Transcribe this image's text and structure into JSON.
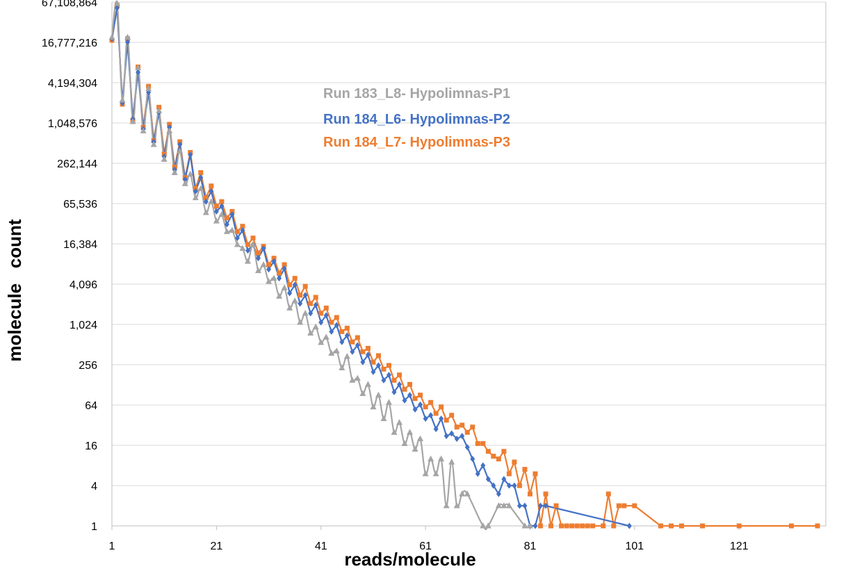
{
  "chart_data": {
    "type": "line",
    "title": "",
    "xlabel": "reads/molecule",
    "ylabel": "molecule   count",
    "x_scale": "linear",
    "y_scale": "log2",
    "xlim": [
      1,
      136
    ],
    "ylim": [
      1,
      67108864
    ],
    "x_ticks": [
      1,
      21,
      41,
      61,
      81,
      101,
      121
    ],
    "x_tick_labels": [
      "1",
      "21",
      "41",
      "61",
      "81",
      "101",
      "121"
    ],
    "y_ticks": [
      1,
      4,
      16,
      64,
      256,
      1024,
      4096,
      16384,
      65536,
      262144,
      1048576,
      4194304,
      16777216,
      67108864
    ],
    "y_tick_labels": [
      "1",
      "4",
      "16",
      "64",
      "256",
      "1,024",
      "4,096",
      "16,384",
      "65,536",
      "262,144",
      "1,048,576",
      "4,194,304",
      "16,777,216",
      "67,108,864"
    ],
    "grid": "horizontal",
    "legend_position": "center-top",
    "series": [
      {
        "name": "Run 183_L8- Hypolimnas-P1",
        "color": "#a5a5a5",
        "marker": "triangle",
        "smooth": true,
        "points": [
          [
            1,
            20000000
          ],
          [
            2,
            64000000
          ],
          [
            3,
            2300000
          ],
          [
            4,
            20000000
          ],
          [
            5,
            1100000
          ],
          [
            6,
            7000000
          ],
          [
            7,
            800000
          ],
          [
            8,
            3400000
          ],
          [
            9,
            500000
          ],
          [
            10,
            1600000
          ],
          [
            11,
            300000
          ],
          [
            12,
            800000
          ],
          [
            13,
            190000
          ],
          [
            14,
            400000
          ],
          [
            15,
            130000
          ],
          [
            16,
            180000
          ],
          [
            17,
            80000
          ],
          [
            18,
            110000
          ],
          [
            19,
            48000
          ],
          [
            20,
            70000
          ],
          [
            21,
            36000
          ],
          [
            22,
            45000
          ],
          [
            23,
            25000
          ],
          [
            24,
            26000
          ],
          [
            25,
            16000
          ],
          [
            26,
            14000
          ],
          [
            27,
            9000
          ],
          [
            28,
            16000
          ],
          [
            29,
            6500
          ],
          [
            30,
            8000
          ],
          [
            31,
            4500
          ],
          [
            32,
            5000
          ],
          [
            33,
            2700
          ],
          [
            34,
            3600
          ],
          [
            35,
            1800
          ],
          [
            36,
            2300
          ],
          [
            37,
            1100
          ],
          [
            38,
            1500
          ],
          [
            39,
            760
          ],
          [
            40,
            940
          ],
          [
            41,
            550
          ],
          [
            42,
            660
          ],
          [
            43,
            380
          ],
          [
            44,
            410
          ],
          [
            45,
            230
          ],
          [
            46,
            340
          ],
          [
            47,
            150
          ],
          [
            48,
            160
          ],
          [
            49,
            95
          ],
          [
            50,
            130
          ],
          [
            51,
            60
          ],
          [
            52,
            90
          ],
          [
            53,
            40
          ],
          [
            54,
            70
          ],
          [
            55,
            25
          ],
          [
            56,
            35
          ],
          [
            57,
            17
          ],
          [
            58,
            25
          ],
          [
            59,
            14
          ],
          [
            60,
            20
          ],
          [
            61,
            6
          ],
          [
            62,
            10
          ],
          [
            63,
            6
          ],
          [
            64,
            10
          ],
          [
            65,
            2
          ],
          [
            66,
            9
          ],
          [
            67,
            2
          ],
          [
            68,
            3
          ],
          [
            69,
            3
          ],
          [
            72,
            1
          ],
          [
            73,
            1
          ],
          [
            75,
            2
          ],
          [
            76,
            2
          ],
          [
            77,
            2
          ],
          [
            80,
            1
          ],
          [
            81,
            1
          ]
        ]
      },
      {
        "name": "Run 184_L6- Hypolimnas-P2",
        "color": "#4472c4",
        "marker": "diamond",
        "smooth": false,
        "points": [
          [
            1,
            19000000
          ],
          [
            2,
            55000000
          ],
          [
            3,
            2100000
          ],
          [
            4,
            17000000
          ],
          [
            5,
            1200000
          ],
          [
            6,
            6000000
          ],
          [
            7,
            850000
          ],
          [
            8,
            3000000
          ],
          [
            9,
            550000
          ],
          [
            10,
            1500000
          ],
          [
            11,
            330000
          ],
          [
            12,
            900000
          ],
          [
            13,
            210000
          ],
          [
            14,
            500000
          ],
          [
            15,
            150000
          ],
          [
            16,
            350000
          ],
          [
            17,
            100000
          ],
          [
            18,
            160000
          ],
          [
            19,
            70000
          ],
          [
            20,
            100000
          ],
          [
            21,
            50000
          ],
          [
            22,
            60000
          ],
          [
            23,
            32000
          ],
          [
            24,
            45000
          ],
          [
            25,
            20000
          ],
          [
            26,
            26000
          ],
          [
            27,
            13000
          ],
          [
            28,
            16000
          ],
          [
            29,
            10000
          ],
          [
            30,
            14000
          ],
          [
            31,
            6800
          ],
          [
            32,
            9000
          ],
          [
            33,
            5000
          ],
          [
            34,
            7000
          ],
          [
            35,
            3000
          ],
          [
            36,
            4000
          ],
          [
            37,
            2100
          ],
          [
            38,
            2800
          ],
          [
            39,
            1500
          ],
          [
            40,
            2000
          ],
          [
            41,
            1100
          ],
          [
            42,
            1400
          ],
          [
            43,
            800
          ],
          [
            44,
            1000
          ],
          [
            45,
            560
          ],
          [
            46,
            700
          ],
          [
            47,
            400
          ],
          [
            48,
            500
          ],
          [
            49,
            280
          ],
          [
            50,
            360
          ],
          [
            51,
            200
          ],
          [
            52,
            250
          ],
          [
            53,
            150
          ],
          [
            54,
            180
          ],
          [
            55,
            100
          ],
          [
            56,
            130
          ],
          [
            57,
            75
          ],
          [
            58,
            90
          ],
          [
            59,
            55
          ],
          [
            60,
            65
          ],
          [
            61,
            40
          ],
          [
            62,
            45
          ],
          [
            63,
            28
          ],
          [
            64,
            40
          ],
          [
            65,
            22
          ],
          [
            66,
            24
          ],
          [
            67,
            20
          ],
          [
            68,
            22
          ],
          [
            69,
            15
          ],
          [
            70,
            10
          ],
          [
            71,
            6
          ],
          [
            72,
            8
          ],
          [
            73,
            5
          ],
          [
            74,
            4
          ],
          [
            75,
            3
          ],
          [
            76,
            5
          ],
          [
            77,
            4
          ],
          [
            78,
            4
          ],
          [
            79,
            2
          ],
          [
            80,
            2
          ],
          [
            81,
            1
          ],
          [
            82,
            1
          ],
          [
            83,
            2
          ],
          [
            84,
            2
          ],
          [
            100,
            1
          ]
        ]
      },
      {
        "name": "Run 184_L7- Hypolimnas-P3",
        "color": "#ed7d31",
        "marker": "square",
        "smooth": false,
        "points": [
          [
            1,
            18000000
          ],
          [
            2,
            60000000
          ],
          [
            3,
            2000000
          ],
          [
            4,
            19000000
          ],
          [
            5,
            1150000
          ],
          [
            6,
            7200000
          ],
          [
            7,
            900000
          ],
          [
            8,
            3700000
          ],
          [
            9,
            570000
          ],
          [
            10,
            1800000
          ],
          [
            11,
            360000
          ],
          [
            12,
            1000000
          ],
          [
            13,
            230000
          ],
          [
            14,
            550000
          ],
          [
            15,
            160000
          ],
          [
            16,
            380000
          ],
          [
            17,
            110000
          ],
          [
            18,
            190000
          ],
          [
            19,
            80000
          ],
          [
            20,
            120000
          ],
          [
            21,
            60000
          ],
          [
            22,
            70000
          ],
          [
            23,
            40000
          ],
          [
            24,
            50000
          ],
          [
            25,
            25000
          ],
          [
            26,
            30000
          ],
          [
            27,
            16000
          ],
          [
            28,
            20000
          ],
          [
            29,
            12000
          ],
          [
            30,
            15000
          ],
          [
            31,
            8000
          ],
          [
            32,
            10000
          ],
          [
            33,
            6000
          ],
          [
            34,
            8000
          ],
          [
            35,
            4000
          ],
          [
            36,
            5000
          ],
          [
            37,
            2800
          ],
          [
            38,
            3800
          ],
          [
            39,
            2100
          ],
          [
            40,
            2600
          ],
          [
            41,
            1500
          ],
          [
            42,
            1800
          ],
          [
            43,
            1100
          ],
          [
            44,
            1300
          ],
          [
            45,
            800
          ],
          [
            46,
            900
          ],
          [
            47,
            560
          ],
          [
            48,
            650
          ],
          [
            49,
            400
          ],
          [
            50,
            450
          ],
          [
            51,
            280
          ],
          [
            52,
            350
          ],
          [
            53,
            220
          ],
          [
            54,
            250
          ],
          [
            55,
            150
          ],
          [
            56,
            180
          ],
          [
            57,
            110
          ],
          [
            58,
            130
          ],
          [
            59,
            80
          ],
          [
            60,
            90
          ],
          [
            61,
            60
          ],
          [
            62,
            70
          ],
          [
            63,
            48
          ],
          [
            64,
            60
          ],
          [
            65,
            38
          ],
          [
            66,
            45
          ],
          [
            67,
            30
          ],
          [
            68,
            32
          ],
          [
            69,
            25
          ],
          [
            70,
            30
          ],
          [
            71,
            17
          ],
          [
            72,
            17
          ],
          [
            73,
            13
          ],
          [
            74,
            11
          ],
          [
            75,
            10
          ],
          [
            76,
            13
          ],
          [
            77,
            6
          ],
          [
            78,
            9
          ],
          [
            79,
            4
          ],
          [
            80,
            7
          ],
          [
            81,
            3
          ],
          [
            82,
            6
          ],
          [
            83,
            1
          ],
          [
            84,
            3
          ],
          [
            85,
            1
          ],
          [
            86,
            2
          ],
          [
            87,
            1
          ],
          [
            88,
            1
          ],
          [
            89,
            1
          ],
          [
            90,
            1
          ],
          [
            91,
            1
          ],
          [
            92,
            1
          ],
          [
            93,
            1
          ],
          [
            95,
            1
          ],
          [
            96,
            3
          ],
          [
            97,
            1
          ],
          [
            98,
            2
          ],
          [
            99,
            2
          ],
          [
            101,
            2
          ],
          [
            106,
            1
          ],
          [
            108,
            1
          ],
          [
            110,
            1
          ],
          [
            114,
            1
          ],
          [
            121,
            1
          ],
          [
            131,
            1
          ],
          [
            136,
            1
          ]
        ]
      }
    ]
  }
}
